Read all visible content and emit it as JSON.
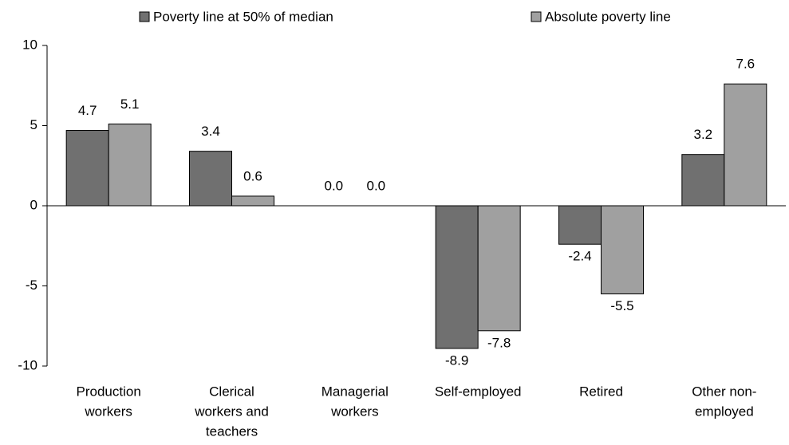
{
  "chart_data": {
    "type": "bar",
    "categories": [
      [
        "Production",
        "workers"
      ],
      [
        "Clerical",
        "workers and",
        "teachers"
      ],
      [
        "Managerial",
        "workers"
      ],
      [
        "Self-employed"
      ],
      [
        "Retired"
      ],
      [
        "Other non-",
        "employed"
      ]
    ],
    "series": [
      {
        "name": "Poverty line at 50% of median",
        "color": "#707070",
        "values": [
          4.7,
          3.4,
          0,
          -8.9,
          -2.4,
          3.2
        ],
        "value_labels": [
          "4.7",
          "3.4",
          "0.0",
          "-8.9",
          "-2.4",
          "3.2"
        ]
      },
      {
        "name": "Absolute poverty line",
        "color": "#a0a0a0",
        "values": [
          5.1,
          0.6,
          0,
          -7.8,
          -5.5,
          7.6
        ],
        "value_labels": [
          "5.1",
          "0.6",
          "0.0",
          "-7.8",
          "-5.5",
          "7.6"
        ]
      }
    ],
    "ylim": [
      -10,
      10
    ],
    "yticks": [
      -10,
      -5,
      0,
      5,
      10
    ],
    "grid": false,
    "legend": "top"
  }
}
